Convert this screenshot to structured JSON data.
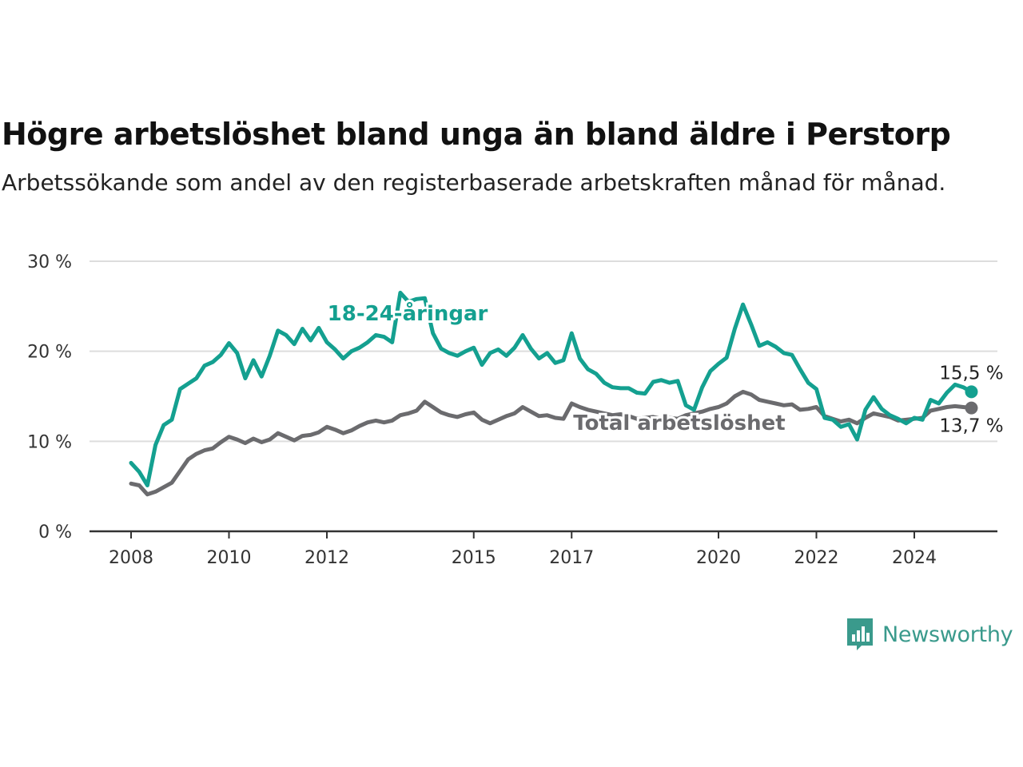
{
  "header": {
    "title": "Högre arbetslöshet bland unga än bland äldre i Perstorp",
    "subtitle": "Arbetssökande som andel av den registerbaserade arbetskraften månad för månad."
  },
  "brand": {
    "name": "Newsworthy",
    "icon": "newsworthy-logo-icon",
    "color": "#3a9a8c"
  },
  "colors": {
    "youth": "#14a090",
    "total": "#6b6b6e",
    "grid": "#dddddd",
    "axis": "#333333"
  },
  "chart_data": {
    "type": "line",
    "title": "Högre arbetslöshet bland unga än bland äldre i Perstorp",
    "xlabel": "",
    "ylabel": "",
    "ylim": [
      0,
      30
    ],
    "xlim": [
      "2008-01",
      "2025-09"
    ],
    "y_ticks": [
      {
        "value": 0,
        "label": "0 %"
      },
      {
        "value": 10,
        "label": "10 %"
      },
      {
        "value": 20,
        "label": "20 %"
      },
      {
        "value": 30,
        "label": "30 %"
      }
    ],
    "x_ticks": [
      {
        "value": "2008-01",
        "label": "2008"
      },
      {
        "value": "2010-01",
        "label": "2010"
      },
      {
        "value": "2012-01",
        "label": "2012"
      },
      {
        "value": "2015-01",
        "label": "2015"
      },
      {
        "value": "2017-01",
        "label": "2017"
      },
      {
        "value": "2020-01",
        "label": "2020"
      },
      {
        "value": "2022-01",
        "label": "2022"
      },
      {
        "value": "2024-01",
        "label": "2024"
      }
    ],
    "grid": "horizontal",
    "legend": "direct labels",
    "series": [
      {
        "name": "18-24-åringar",
        "color": "#14a090",
        "end_label": "15,5 %",
        "points": [
          [
            "2008-01",
            7.6
          ],
          [
            "2008-03",
            6.6
          ],
          [
            "2008-05",
            5.1
          ],
          [
            "2008-07",
            9.6
          ],
          [
            "2008-09",
            11.8
          ],
          [
            "2008-11",
            12.4
          ],
          [
            "2009-01",
            15.8
          ],
          [
            "2009-03",
            16.4
          ],
          [
            "2009-05",
            17.0
          ],
          [
            "2009-07",
            18.4
          ],
          [
            "2009-09",
            18.8
          ],
          [
            "2009-11",
            19.6
          ],
          [
            "2010-01",
            20.9
          ],
          [
            "2010-03",
            19.8
          ],
          [
            "2010-05",
            17.0
          ],
          [
            "2010-07",
            19.0
          ],
          [
            "2010-09",
            17.2
          ],
          [
            "2010-11",
            19.5
          ],
          [
            "2011-01",
            22.3
          ],
          [
            "2011-03",
            21.8
          ],
          [
            "2011-05",
            20.8
          ],
          [
            "2011-07",
            22.5
          ],
          [
            "2011-09",
            21.2
          ],
          [
            "2011-11",
            22.6
          ],
          [
            "2012-01",
            21.0
          ],
          [
            "2012-03",
            20.2
          ],
          [
            "2012-05",
            19.2
          ],
          [
            "2012-07",
            20.0
          ],
          [
            "2012-09",
            20.4
          ],
          [
            "2012-11",
            21.0
          ],
          [
            "2013-01",
            21.8
          ],
          [
            "2013-03",
            21.6
          ],
          [
            "2013-05",
            21.0
          ],
          [
            "2013-07",
            26.5
          ],
          [
            "2013-09",
            25.5
          ],
          [
            "2013-11",
            25.8
          ],
          [
            "2014-01",
            25.9
          ],
          [
            "2014-03",
            22.0
          ],
          [
            "2014-05",
            20.3
          ],
          [
            "2014-07",
            19.8
          ],
          [
            "2014-09",
            19.5
          ],
          [
            "2014-11",
            20.0
          ],
          [
            "2015-01",
            20.4
          ],
          [
            "2015-03",
            18.5
          ],
          [
            "2015-05",
            19.8
          ],
          [
            "2015-07",
            20.2
          ],
          [
            "2015-09",
            19.5
          ],
          [
            "2015-11",
            20.4
          ],
          [
            "2016-01",
            21.8
          ],
          [
            "2016-03",
            20.3
          ],
          [
            "2016-05",
            19.2
          ],
          [
            "2016-07",
            19.8
          ],
          [
            "2016-09",
            18.7
          ],
          [
            "2016-11",
            19.0
          ],
          [
            "2017-01",
            22.0
          ],
          [
            "2017-03",
            19.2
          ],
          [
            "2017-05",
            18.0
          ],
          [
            "2017-07",
            17.5
          ],
          [
            "2017-09",
            16.5
          ],
          [
            "2017-11",
            16.0
          ],
          [
            "2018-01",
            15.9
          ],
          [
            "2018-03",
            15.9
          ],
          [
            "2018-05",
            15.4
          ],
          [
            "2018-07",
            15.3
          ],
          [
            "2018-09",
            16.6
          ],
          [
            "2018-11",
            16.8
          ],
          [
            "2019-01",
            16.5
          ],
          [
            "2019-03",
            16.7
          ],
          [
            "2019-05",
            14.0
          ],
          [
            "2019-07",
            13.5
          ],
          [
            "2019-09",
            16.0
          ],
          [
            "2019-11",
            17.8
          ],
          [
            "2020-01",
            18.6
          ],
          [
            "2020-03",
            19.3
          ],
          [
            "2020-05",
            22.5
          ],
          [
            "2020-07",
            25.2
          ],
          [
            "2020-09",
            23.0
          ],
          [
            "2020-11",
            20.6
          ],
          [
            "2021-01",
            21.0
          ],
          [
            "2021-03",
            20.5
          ],
          [
            "2021-05",
            19.8
          ],
          [
            "2021-07",
            19.6
          ],
          [
            "2021-09",
            18.0
          ],
          [
            "2021-11",
            16.5
          ],
          [
            "2022-01",
            15.8
          ],
          [
            "2022-03",
            12.6
          ],
          [
            "2022-05",
            12.4
          ],
          [
            "2022-07",
            11.6
          ],
          [
            "2022-09",
            11.9
          ],
          [
            "2022-11",
            10.2
          ],
          [
            "2023-01",
            13.5
          ],
          [
            "2023-03",
            14.9
          ],
          [
            "2023-05",
            13.6
          ],
          [
            "2023-07",
            12.9
          ],
          [
            "2023-09",
            12.5
          ],
          [
            "2023-11",
            12.0
          ],
          [
            "2024-01",
            12.6
          ],
          [
            "2024-03",
            12.4
          ],
          [
            "2024-05",
            14.6
          ],
          [
            "2024-07",
            14.2
          ],
          [
            "2024-09",
            15.4
          ],
          [
            "2024-11",
            16.3
          ],
          [
            "2025-01",
            16.0
          ],
          [
            "2025-03",
            15.5
          ]
        ]
      },
      {
        "name": "Total arbetslöshet",
        "color": "#6b6b6e",
        "end_label": "13,7 %",
        "points": [
          [
            "2008-01",
            5.3
          ],
          [
            "2008-03",
            5.1
          ],
          [
            "2008-05",
            4.1
          ],
          [
            "2008-07",
            4.4
          ],
          [
            "2008-09",
            4.9
          ],
          [
            "2008-11",
            5.4
          ],
          [
            "2009-01",
            6.7
          ],
          [
            "2009-03",
            8.0
          ],
          [
            "2009-05",
            8.6
          ],
          [
            "2009-07",
            9.0
          ],
          [
            "2009-09",
            9.2
          ],
          [
            "2009-11",
            9.9
          ],
          [
            "2010-01",
            10.5
          ],
          [
            "2010-03",
            10.2
          ],
          [
            "2010-05",
            9.8
          ],
          [
            "2010-07",
            10.3
          ],
          [
            "2010-09",
            9.9
          ],
          [
            "2010-11",
            10.2
          ],
          [
            "2011-01",
            10.9
          ],
          [
            "2011-03",
            10.5
          ],
          [
            "2011-05",
            10.1
          ],
          [
            "2011-07",
            10.6
          ],
          [
            "2011-09",
            10.7
          ],
          [
            "2011-11",
            11.0
          ],
          [
            "2012-01",
            11.6
          ],
          [
            "2012-03",
            11.3
          ],
          [
            "2012-05",
            10.9
          ],
          [
            "2012-07",
            11.2
          ],
          [
            "2012-09",
            11.7
          ],
          [
            "2012-11",
            12.1
          ],
          [
            "2013-01",
            12.3
          ],
          [
            "2013-03",
            12.1
          ],
          [
            "2013-05",
            12.3
          ],
          [
            "2013-07",
            12.9
          ],
          [
            "2013-09",
            13.1
          ],
          [
            "2013-11",
            13.4
          ],
          [
            "2014-01",
            14.4
          ],
          [
            "2014-03",
            13.8
          ],
          [
            "2014-05",
            13.2
          ],
          [
            "2014-07",
            12.9
          ],
          [
            "2014-09",
            12.7
          ],
          [
            "2014-11",
            13.0
          ],
          [
            "2015-01",
            13.2
          ],
          [
            "2015-03",
            12.4
          ],
          [
            "2015-05",
            12.0
          ],
          [
            "2015-07",
            12.4
          ],
          [
            "2015-09",
            12.8
          ],
          [
            "2015-11",
            13.1
          ],
          [
            "2016-01",
            13.8
          ],
          [
            "2016-03",
            13.3
          ],
          [
            "2016-05",
            12.8
          ],
          [
            "2016-07",
            12.9
          ],
          [
            "2016-09",
            12.6
          ],
          [
            "2016-11",
            12.5
          ],
          [
            "2017-01",
            14.2
          ],
          [
            "2017-03",
            13.8
          ],
          [
            "2017-05",
            13.5
          ],
          [
            "2017-07",
            13.3
          ],
          [
            "2017-09",
            13.1
          ],
          [
            "2017-11",
            12.9
          ],
          [
            "2018-01",
            13.0
          ],
          [
            "2018-03",
            12.8
          ],
          [
            "2018-05",
            12.5
          ],
          [
            "2018-07",
            12.6
          ],
          [
            "2018-09",
            12.7
          ],
          [
            "2018-11",
            12.5
          ],
          [
            "2019-01",
            12.6
          ],
          [
            "2019-03",
            12.5
          ],
          [
            "2019-05",
            12.9
          ],
          [
            "2019-07",
            13.1
          ],
          [
            "2019-09",
            13.3
          ],
          [
            "2019-11",
            13.6
          ],
          [
            "2020-01",
            13.8
          ],
          [
            "2020-03",
            14.2
          ],
          [
            "2020-05",
            15.0
          ],
          [
            "2020-07",
            15.5
          ],
          [
            "2020-09",
            15.2
          ],
          [
            "2020-11",
            14.6
          ],
          [
            "2021-01",
            14.4
          ],
          [
            "2021-03",
            14.2
          ],
          [
            "2021-05",
            14.0
          ],
          [
            "2021-07",
            14.1
          ],
          [
            "2021-09",
            13.5
          ],
          [
            "2021-11",
            13.6
          ],
          [
            "2022-01",
            13.8
          ],
          [
            "2022-03",
            12.8
          ],
          [
            "2022-05",
            12.5
          ],
          [
            "2022-07",
            12.2
          ],
          [
            "2022-09",
            12.4
          ],
          [
            "2022-11",
            12.0
          ],
          [
            "2023-01",
            12.6
          ],
          [
            "2023-03",
            13.1
          ],
          [
            "2023-05",
            12.9
          ],
          [
            "2023-07",
            12.7
          ],
          [
            "2023-09",
            12.3
          ],
          [
            "2023-11",
            12.4
          ],
          [
            "2024-01",
            12.5
          ],
          [
            "2024-03",
            12.6
          ],
          [
            "2024-05",
            13.4
          ],
          [
            "2024-07",
            13.6
          ],
          [
            "2024-09",
            13.8
          ],
          [
            "2024-11",
            13.9
          ],
          [
            "2025-01",
            13.8
          ],
          [
            "2025-03",
            13.7
          ]
        ]
      }
    ]
  }
}
